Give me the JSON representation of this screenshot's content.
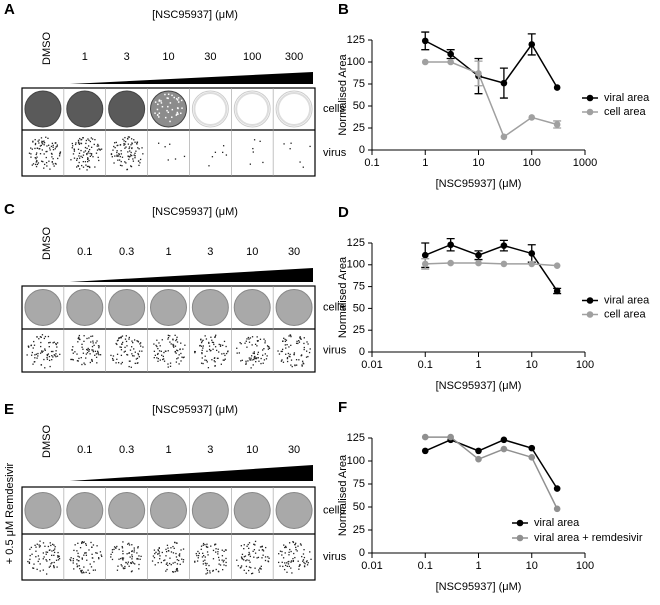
{
  "image_panels": [
    {
      "panel": "A",
      "title": "[NSC95937] (μM)",
      "control": "DMSO",
      "doses": [
        "1",
        "3",
        "10",
        "30",
        "100",
        "300"
      ],
      "rows": [
        "cells",
        "virus"
      ]
    },
    {
      "panel": "C",
      "title": "[NSC95937] (μM)",
      "control": "DMSO",
      "doses": [
        "0.1",
        "0.3",
        "1",
        "3",
        "10",
        "30"
      ],
      "rows": [
        "cells",
        "virus"
      ]
    },
    {
      "panel": "E",
      "title": "[NSC95937] (μM)",
      "control": "DMSO",
      "doses": [
        "0.1",
        "0.3",
        "1",
        "3",
        "10",
        "30"
      ],
      "rows": [
        "cells",
        "virus"
      ],
      "side_label": "+ 0.5 μM Remdesivir"
    }
  ],
  "chart_data": [
    {
      "type": "line",
      "panel": "B",
      "x_label": "[NSC95937] (μM)",
      "y_label": "Normalised Area",
      "log_x": true,
      "grid": false,
      "legend": "right",
      "xlim": [
        0.1,
        1000
      ],
      "xticks": [
        0.1,
        1,
        10,
        100,
        1000
      ],
      "ylim": [
        0,
        125
      ],
      "yticks": [
        0,
        25,
        50,
        75,
        100,
        125
      ],
      "x": [
        1,
        3,
        10,
        30,
        100,
        300
      ],
      "series": [
        {
          "name": "viral area",
          "color": "#000000",
          "values": [
            124,
            109,
            84,
            76,
            120,
            71
          ],
          "errors": [
            10,
            5,
            20,
            17,
            12,
            0
          ]
        },
        {
          "name": "cell area",
          "color": "#a0a0a0",
          "values": [
            100,
            100,
            87,
            15,
            37,
            29
          ],
          "errors": [
            0,
            0,
            14,
            0,
            0,
            4
          ]
        }
      ]
    },
    {
      "type": "line",
      "panel": "D",
      "x_label": "[NSC95937] (μM)",
      "y_label": "Normalised Area",
      "log_x": true,
      "grid": false,
      "legend": "right",
      "xlim": [
        0.01,
        100
      ],
      "xticks": [
        0.01,
        0.1,
        1,
        10,
        100
      ],
      "ylim": [
        0,
        125
      ],
      "yticks": [
        0,
        25,
        50,
        75,
        100,
        125
      ],
      "x": [
        0.1,
        0.3,
        1,
        3,
        10,
        30
      ],
      "series": [
        {
          "name": "viral area",
          "color": "#000000",
          "values": [
            111,
            123,
            111,
            122,
            113,
            70
          ],
          "errors": [
            14,
            7,
            5,
            6,
            10,
            3
          ]
        },
        {
          "name": "cell area",
          "color": "#a0a0a0",
          "values": [
            101,
            102,
            102,
            101,
            101,
            99
          ],
          "errors": [
            6,
            0,
            0,
            0,
            0,
            0
          ]
        }
      ]
    },
    {
      "type": "line",
      "panel": "F",
      "x_label": "[NSC95937] (μM)",
      "y_label": "Normalised Area",
      "log_x": true,
      "grid": false,
      "legend": "bottom",
      "xlim": [
        0.01,
        100
      ],
      "xticks": [
        0.01,
        0.1,
        1,
        10,
        100
      ],
      "ylim": [
        0,
        125
      ],
      "yticks": [
        0,
        25,
        50,
        75,
        100,
        125
      ],
      "x": [
        0.1,
        0.3,
        1,
        3,
        10,
        30
      ],
      "series": [
        {
          "name": "viral area",
          "color": "#000000",
          "values": [
            111,
            123,
            111,
            123,
            114,
            70
          ]
        },
        {
          "name": "viral area + remdesivir",
          "color": "#909090",
          "values": [
            126,
            126,
            102,
            113,
            104,
            48
          ]
        }
      ]
    }
  ]
}
